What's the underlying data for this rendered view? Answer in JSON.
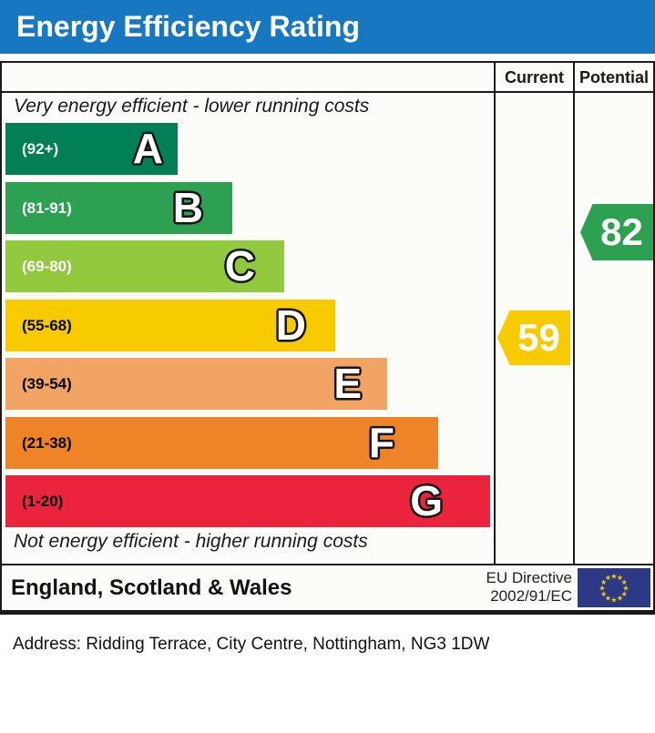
{
  "title": "Energy Efficiency Rating",
  "table": {
    "columns": {
      "current": "Current",
      "potential": "Potential"
    },
    "top_note": "Very energy efficient - lower running costs",
    "bottom_note": "Not energy efficient - higher running costs"
  },
  "bands": [
    {
      "letter": "A",
      "range": "(92+)",
      "color": "#008054",
      "text_color": "#ffffff"
    },
    {
      "letter": "B",
      "range": "(81-91)",
      "color": "#2ea052",
      "text_color": "#ffffff"
    },
    {
      "letter": "C",
      "range": "(69-80)",
      "color": "#92c83e",
      "text_color": "#ffffff"
    },
    {
      "letter": "D",
      "range": "(55-68)",
      "color": "#f8ca00",
      "text_color": "#000000"
    },
    {
      "letter": "E",
      "range": "(39-54)",
      "color": "#f2a465",
      "text_color": "#000000"
    },
    {
      "letter": "F",
      "range": "(21-38)",
      "color": "#ee8427",
      "text_color": "#000000"
    },
    {
      "letter": "G",
      "range": "(1-20)",
      "color": "#e9243c",
      "text_color": "#000000"
    }
  ],
  "ratings": {
    "current": {
      "value": "59",
      "band": "D",
      "color": "#f8ca00"
    },
    "potential": {
      "value": "82",
      "band": "B",
      "color": "#2ea052"
    }
  },
  "footer": {
    "region": "England, Scotland & Wales",
    "directive_line1": "EU Directive",
    "directive_line2": "2002/91/EC",
    "flag_colors": {
      "field": "#2c3a85",
      "stars": "#ffcc00"
    }
  },
  "address": "Address: Ridding Terrace, City Centre, Nottingham, NG3 1DW",
  "colors": {
    "title_bg": "#1778c1",
    "title_text": "#ffffff",
    "border": "#1a1a1a"
  },
  "chart_data": {
    "type": "bar",
    "subtype": "epc-energy-efficiency-rating",
    "title": "Energy Efficiency Rating",
    "categories": [
      "A",
      "B",
      "C",
      "D",
      "E",
      "F",
      "G"
    ],
    "band_ranges": [
      "92+",
      "81-91",
      "69-80",
      "55-68",
      "39-54",
      "21-38",
      "1-20"
    ],
    "band_colors": [
      "#008054",
      "#2ea052",
      "#92c83e",
      "#f8ca00",
      "#f2a465",
      "#ee8427",
      "#e9243c"
    ],
    "series": [
      {
        "name": "Current",
        "value": 59,
        "band": "D",
        "color": "#f8ca00"
      },
      {
        "name": "Potential",
        "value": 82,
        "band": "B",
        "color": "#2ea052"
      }
    ],
    "value_range": [
      1,
      100
    ],
    "annotations": [
      "Very energy efficient - lower running costs",
      "Not energy efficient - higher running costs"
    ],
    "region": "England, Scotland & Wales",
    "directive": "EU Directive 2002/91/EC",
    "address": "Ridding Terrace, City Centre, Nottingham, NG3 1DW"
  }
}
